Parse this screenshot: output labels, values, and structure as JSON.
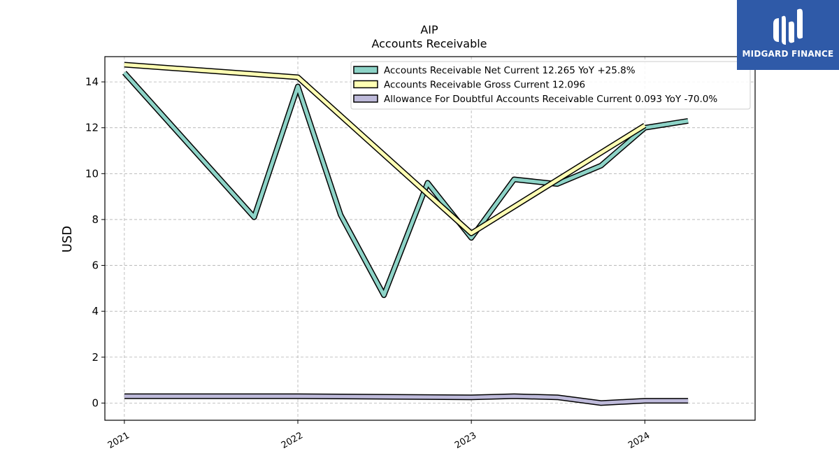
{
  "chart_data": {
    "type": "line",
    "title": "AIP",
    "subtitle": "Accounts Receivable",
    "ylabel": "USD",
    "xlabel": "",
    "xlim": [
      "2020-11-21",
      "2024-08-20"
    ],
    "ylim": [
      -0.75,
      15.1
    ],
    "x_ticks": [
      {
        "label": "2021",
        "date": "2021-01-01"
      },
      {
        "label": "2022",
        "date": "2022-01-01"
      },
      {
        "label": "2023",
        "date": "2023-01-01"
      },
      {
        "label": "2024",
        "date": "2024-01-01"
      }
    ],
    "y_ticks": [
      0,
      2,
      4,
      6,
      8,
      10,
      12,
      14
    ],
    "grid": true,
    "legend_position": "top-right",
    "series": [
      {
        "name": "Accounts Receivable Net Current  12.265 YoY +25.8%",
        "color": "#8dd3c7",
        "x": [
          "2021-01-01",
          "2021-10-01",
          "2022-01-01",
          "2022-04-01",
          "2022-07-01",
          "2022-10-01",
          "2023-01-01",
          "2023-04-01",
          "2023-07-01",
          "2023-10-01",
          "2024-01-01",
          "2024-04-01"
        ],
        "y": [
          14.4,
          8.1,
          13.8,
          8.2,
          4.7,
          9.6,
          7.2,
          9.75,
          9.55,
          10.35,
          12.0,
          12.3
        ]
      },
      {
        "name": "Accounts Receivable Gross Current  12.096",
        "color": "#ffffb3",
        "x": [
          "2021-01-01",
          "2022-01-01",
          "2023-01-01",
          "2024-01-01"
        ],
        "y": [
          14.75,
          14.2,
          7.4,
          12.1
        ]
      },
      {
        "name": "Allowance For Doubtful Accounts Receivable Current  0.093 YoY -70.0%",
        "color": "#bebada",
        "x": [
          "2021-01-01",
          "2022-01-01",
          "2023-01-01",
          "2023-04-01",
          "2023-07-01",
          "2023-10-01",
          "2024-01-01",
          "2024-04-01"
        ],
        "y": [
          0.3,
          0.3,
          0.25,
          0.3,
          0.25,
          0.0,
          0.1,
          0.1
        ]
      }
    ]
  },
  "logo": {
    "text": "MIDGARD FINANCE"
  }
}
